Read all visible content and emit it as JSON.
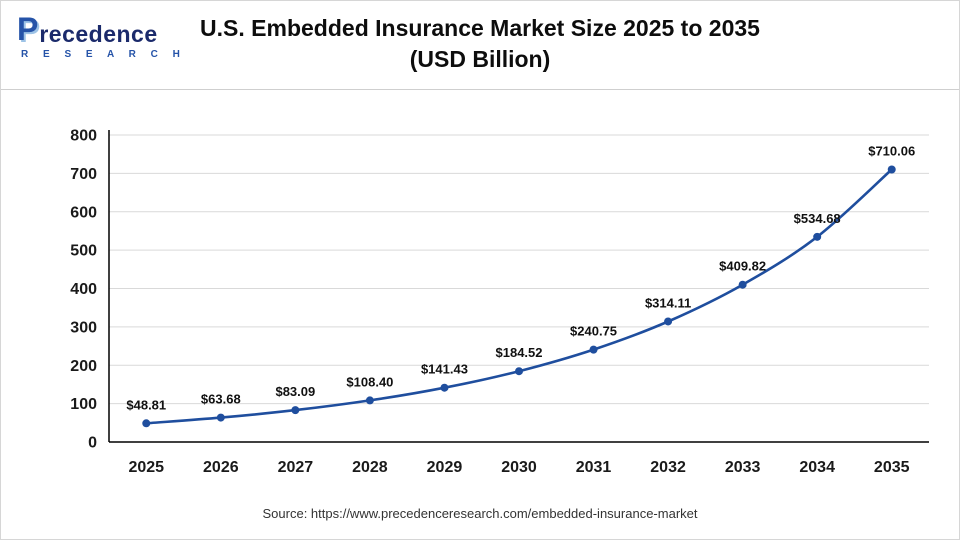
{
  "logo": {
    "p": "P",
    "rest": "recedence",
    "sub": "R E S E A R C H"
  },
  "header": {
    "title_line1": "U.S. Embedded Insurance Market Size 2025 to 2035",
    "title_line2": "(USD Billion)"
  },
  "source": "Source: https://www.precedenceresearch.com/embedded-insurance-market",
  "chart_data": {
    "type": "line",
    "title": "U.S. Embedded Insurance Market Size 2025 to 2035 (USD Billion)",
    "categories": [
      "2025",
      "2026",
      "2027",
      "2028",
      "2029",
      "2030",
      "2031",
      "2032",
      "2033",
      "2034",
      "2035"
    ],
    "values": [
      48.81,
      63.68,
      83.09,
      108.4,
      141.43,
      184.52,
      240.75,
      314.11,
      409.82,
      534.68,
      710.06
    ],
    "data_labels": [
      "$48.81",
      "$63.68",
      "$83.09",
      "$108.40",
      "$141.43",
      "$184.52",
      "$240.75",
      "$314.11",
      "$409.82",
      "$534.68",
      "$710.06"
    ],
    "xlabel": "",
    "ylabel": "",
    "ylim": [
      0,
      800
    ],
    "ytick_step": 100,
    "grid": true,
    "legend_position": "none",
    "line_color": "#1f4e9e",
    "grid_color": "#d9d9d9",
    "axis_color": "#000000"
  }
}
